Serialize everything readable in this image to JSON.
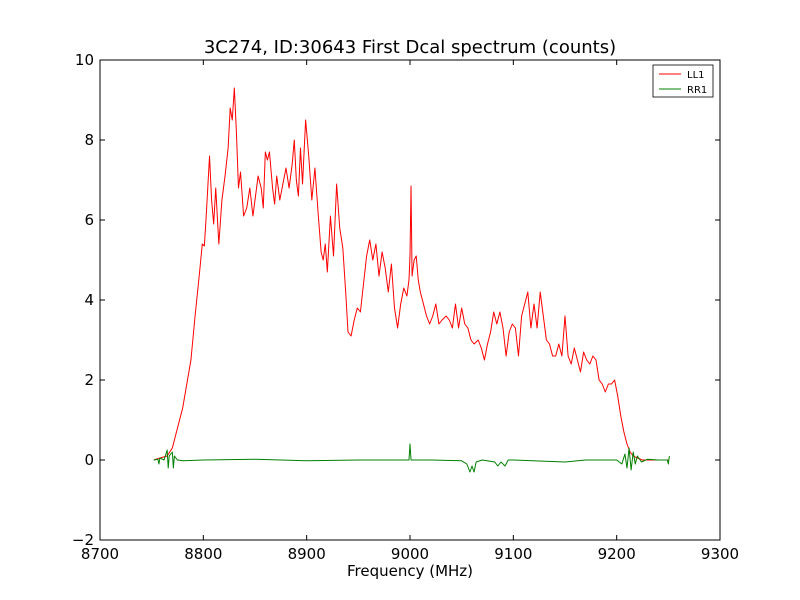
{
  "chart_data": {
    "type": "line",
    "title": "3C274, ID:30643 First Dcal spectrum (counts)",
    "xlabel": "Frequency (MHz)",
    "ylabel": "",
    "xlim": [
      8700,
      9300
    ],
    "ylim": [
      -2,
      10
    ],
    "xticks": [
      8700,
      8800,
      8900,
      9000,
      9100,
      9200,
      9300
    ],
    "yticks": [
      -2,
      0,
      2,
      4,
      6,
      8,
      10
    ],
    "ytick_labels": [
      "−2",
      "0",
      "2",
      "4",
      "6",
      "8",
      "10"
    ],
    "grid": false,
    "legend_position": "top-right",
    "series": [
      {
        "name": "LL1",
        "color": "#ff0000",
        "points": [
          [
            8752,
            0
          ],
          [
            8758,
            0.05
          ],
          [
            8765,
            0.1
          ],
          [
            8770,
            0.3
          ],
          [
            8773,
            0.6
          ],
          [
            8776,
            0.9
          ],
          [
            8780,
            1.3
          ],
          [
            8784,
            1.9
          ],
          [
            8788,
            2.5
          ],
          [
            8792,
            3.6
          ],
          [
            8796,
            4.6
          ],
          [
            8799,
            5.4
          ],
          [
            8801,
            5.35
          ],
          [
            8803,
            6.2
          ],
          [
            8806,
            7.6
          ],
          [
            8808,
            6.5
          ],
          [
            8810,
            5.9
          ],
          [
            8812,
            6.8
          ],
          [
            8815,
            5.4
          ],
          [
            8818,
            6.5
          ],
          [
            8821,
            7.1
          ],
          [
            8824,
            7.8
          ],
          [
            8826,
            8.8
          ],
          [
            8828,
            8.5
          ],
          [
            8830,
            9.3
          ],
          [
            8832,
            8.2
          ],
          [
            8834,
            6.8
          ],
          [
            8836,
            7.2
          ],
          [
            8839,
            6.1
          ],
          [
            8842,
            6.3
          ],
          [
            8845,
            6.8
          ],
          [
            8848,
            6.1
          ],
          [
            8850,
            6.5
          ],
          [
            8853,
            7.1
          ],
          [
            8856,
            6.8
          ],
          [
            8858,
            6.3
          ],
          [
            8860,
            7.7
          ],
          [
            8862,
            7.5
          ],
          [
            8864,
            7.7
          ],
          [
            8867,
            6.8
          ],
          [
            8869,
            6.4
          ],
          [
            8871,
            7.1
          ],
          [
            8874,
            6.5
          ],
          [
            8877,
            6.9
          ],
          [
            8880,
            7.3
          ],
          [
            8883,
            6.8
          ],
          [
            8886,
            7.4
          ],
          [
            8888,
            8.0
          ],
          [
            8890,
            7.0
          ],
          [
            8892,
            6.6
          ],
          [
            8894,
            7.8
          ],
          [
            8896,
            6.9
          ],
          [
            8899,
            8.5
          ],
          [
            8902,
            7.6
          ],
          [
            8905,
            6.5
          ],
          [
            8908,
            7.3
          ],
          [
            8911,
            6.2
          ],
          [
            8914,
            5.2
          ],
          [
            8916,
            5.0
          ],
          [
            8918,
            5.4
          ],
          [
            8920,
            4.7
          ],
          [
            8923,
            6.1
          ],
          [
            8926,
            5.1
          ],
          [
            8929,
            6.9
          ],
          [
            8932,
            5.8
          ],
          [
            8935,
            5.3
          ],
          [
            8938,
            4.1
          ],
          [
            8940,
            3.2
          ],
          [
            8943,
            3.1
          ],
          [
            8946,
            3.5
          ],
          [
            8949,
            3.8
          ],
          [
            8952,
            3.7
          ],
          [
            8955,
            4.4
          ],
          [
            8958,
            5.1
          ],
          [
            8961,
            5.5
          ],
          [
            8964,
            5.0
          ],
          [
            8967,
            5.4
          ],
          [
            8970,
            4.6
          ],
          [
            8973,
            5.2
          ],
          [
            8976,
            4.8
          ],
          [
            8979,
            4.2
          ],
          [
            8982,
            4.9
          ],
          [
            8985,
            3.8
          ],
          [
            8988,
            3.3
          ],
          [
            8991,
            3.9
          ],
          [
            8994,
            4.3
          ],
          [
            8997,
            4.1
          ],
          [
            8999,
            4.5
          ],
          [
            9000,
            5.1
          ],
          [
            9001,
            6.85
          ],
          [
            9002,
            4.6
          ],
          [
            9004,
            5.0
          ],
          [
            9006,
            5.1
          ],
          [
            9008,
            4.5
          ],
          [
            9010,
            4.2
          ],
          [
            9013,
            3.9
          ],
          [
            9016,
            3.6
          ],
          [
            9019,
            3.4
          ],
          [
            9022,
            3.6
          ],
          [
            9025,
            3.9
          ],
          [
            9028,
            3.4
          ],
          [
            9031,
            3.5
          ],
          [
            9035,
            3.6
          ],
          [
            9038,
            3.5
          ],
          [
            9041,
            3.3
          ],
          [
            9044,
            3.9
          ],
          [
            9047,
            3.3
          ],
          [
            9050,
            3.8
          ],
          [
            9053,
            3.4
          ],
          [
            9056,
            3.3
          ],
          [
            9059,
            3.0
          ],
          [
            9062,
            2.9
          ],
          [
            9066,
            3.0
          ],
          [
            9069,
            2.8
          ],
          [
            9072,
            2.5
          ],
          [
            9075,
            2.9
          ],
          [
            9078,
            3.2
          ],
          [
            9081,
            3.7
          ],
          [
            9084,
            3.4
          ],
          [
            9087,
            3.7
          ],
          [
            9090,
            3.3
          ],
          [
            9093,
            2.6
          ],
          [
            9096,
            3.2
          ],
          [
            9099,
            3.4
          ],
          [
            9102,
            3.3
          ],
          [
            9105,
            2.6
          ],
          [
            9108,
            3.6
          ],
          [
            9111,
            3.9
          ],
          [
            9114,
            4.2
          ],
          [
            9117,
            3.3
          ],
          [
            9120,
            3.9
          ],
          [
            9123,
            3.3
          ],
          [
            9126,
            4.2
          ],
          [
            9129,
            3.6
          ],
          [
            9132,
            3.0
          ],
          [
            9135,
            2.9
          ],
          [
            9138,
            2.6
          ],
          [
            9141,
            2.6
          ],
          [
            9144,
            2.9
          ],
          [
            9147,
            2.6
          ],
          [
            9150,
            3.6
          ],
          [
            9153,
            2.6
          ],
          [
            9156,
            2.4
          ],
          [
            9159,
            2.8
          ],
          [
            9162,
            2.5
          ],
          [
            9165,
            2.2
          ],
          [
            9168,
            2.7
          ],
          [
            9171,
            2.5
          ],
          [
            9174,
            2.4
          ],
          [
            9177,
            2.6
          ],
          [
            9180,
            2.5
          ],
          [
            9183,
            2.0
          ],
          [
            9186,
            1.9
          ],
          [
            9189,
            1.7
          ],
          [
            9192,
            1.9
          ],
          [
            9195,
            1.9
          ],
          [
            9198,
            2.0
          ],
          [
            9201,
            1.6
          ],
          [
            9204,
            1.1
          ],
          [
            9207,
            0.7
          ],
          [
            9210,
            0.4
          ],
          [
            9213,
            0.2
          ],
          [
            9216,
            0.1
          ],
          [
            9220,
            0.05
          ],
          [
            9225,
            0
          ],
          [
            9235,
            0
          ],
          [
            9250,
            0
          ]
        ]
      },
      {
        "name": "RR1",
        "color": "#008000",
        "points": [
          [
            8752,
            0
          ],
          [
            8756,
            0.02
          ],
          [
            8757,
            -0.1
          ],
          [
            8758,
            0.05
          ],
          [
            8762,
            0
          ],
          [
            8765,
            0.25
          ],
          [
            8766,
            -0.2
          ],
          [
            8767,
            0.1
          ],
          [
            8770,
            0.2
          ],
          [
            8771,
            -0.2
          ],
          [
            8772,
            0.1
          ],
          [
            8775,
            0
          ],
          [
            8780,
            -0.02
          ],
          [
            8800,
            0
          ],
          [
            8850,
            0.02
          ],
          [
            8900,
            -0.02
          ],
          [
            8950,
            0
          ],
          [
            8999,
            0
          ],
          [
            9000,
            0.4
          ],
          [
            9001,
            0
          ],
          [
            9020,
            0
          ],
          [
            9050,
            -0.02
          ],
          [
            9055,
            -0.1
          ],
          [
            9058,
            -0.3
          ],
          [
            9060,
            -0.15
          ],
          [
            9062,
            -0.3
          ],
          [
            9064,
            -0.05
          ],
          [
            9070,
            0
          ],
          [
            9082,
            -0.05
          ],
          [
            9085,
            -0.15
          ],
          [
            9088,
            -0.05
          ],
          [
            9092,
            -0.15
          ],
          [
            9095,
            0
          ],
          [
            9100,
            0
          ],
          [
            9150,
            -0.05
          ],
          [
            9170,
            0
          ],
          [
            9200,
            0
          ],
          [
            9205,
            -0.1
          ],
          [
            9208,
            0.15
          ],
          [
            9210,
            -0.2
          ],
          [
            9212,
            0.3
          ],
          [
            9214,
            -0.25
          ],
          [
            9216,
            0.2
          ],
          [
            9218,
            -0.1
          ],
          [
            9220,
            0.1
          ],
          [
            9224,
            -0.05
          ],
          [
            9230,
            0.02
          ],
          [
            9240,
            0
          ],
          [
            9249,
            0
          ],
          [
            9250,
            -0.1
          ],
          [
            9251,
            0.1
          ]
        ]
      }
    ]
  }
}
